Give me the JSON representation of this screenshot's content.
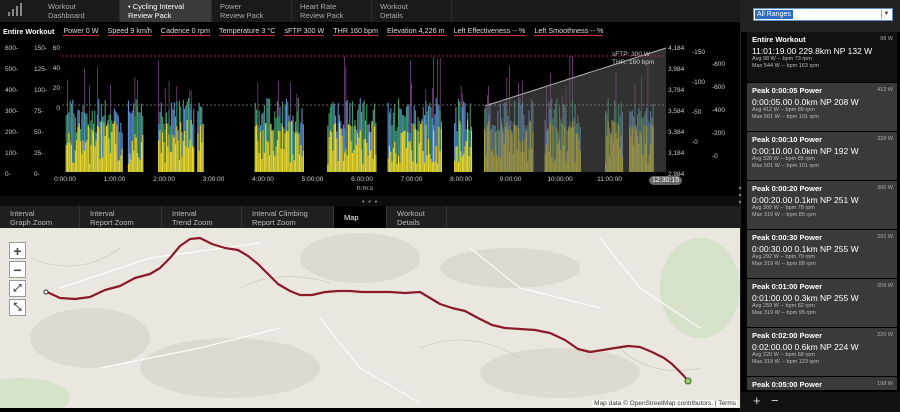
{
  "top_tabs": [
    {
      "label": "Workout\nDashboard"
    },
    {
      "label": "• Cycling Interval\nReview Pack"
    },
    {
      "label": "Power\nReview Pack"
    },
    {
      "label": "Heart Rate\nReview Pack"
    },
    {
      "label": "Workout\nDetails"
    }
  ],
  "stats": {
    "title": "Entire Workout",
    "items": [
      "Power 0 W",
      "Speed 9 km/h",
      "Cadence 0 rpm",
      "Temperature 3 °C",
      "sFTP 300 W",
      "THR 160 bpm",
      "Elevation 4,226 m",
      "Left Effectiveness -- %",
      "Left Smoothness -- %"
    ]
  },
  "graph": {
    "left_axis_1": [
      "600-",
      "500-",
      "400-",
      "300-",
      "200-",
      "100-",
      "0-"
    ],
    "left_axis_2": [
      "150-",
      "125-",
      "100-",
      "75-",
      "50-",
      "25-",
      "0-"
    ],
    "left_axis_3": [
      "60",
      "40",
      "20",
      "0"
    ],
    "right_axis_1": [
      "4,184",
      "3,984",
      "3,784",
      "3,584",
      "3,384",
      "3,184",
      "2,984"
    ],
    "right_axis_2": [
      "-150",
      "-100",
      "-50",
      "-0"
    ],
    "right_axis_3": [
      "-800",
      "-600",
      "-400",
      "-200",
      "-0"
    ],
    "x_ticks": [
      "0:00:00",
      "1:00:00",
      "2:00:00",
      "3:00:00",
      "4:00:00",
      "5:00:00",
      "6:00:00",
      "7:00:00",
      "8:00:00",
      "9:00:00",
      "10:00:00",
      "11:00:00",
      "12:00"
    ],
    "x_label": "h:m:s",
    "legend_sftp": "sFTP: 300 W",
    "legend_thr": "THR: 160 bpm",
    "time_badge": "12:30:15",
    "colors": {
      "power": "#ecd62a",
      "hr": "#5a8fd0",
      "cadence": "#3a9a6a",
      "elevation": "#b5b5b5",
      "speed": "#c86ad0"
    }
  },
  "bottom_tabs": [
    {
      "label": "Interval\nGraph Zoom"
    },
    {
      "label": "Interval\nReport Zoom"
    },
    {
      "label": "Interval\nTrend Zoom"
    },
    {
      "label": "Interval Climbing\nReport Zoom"
    },
    {
      "label": "Map"
    },
    {
      "label": "Workout\nDetails"
    }
  ],
  "map": {
    "attribution": "Map data © OpenStreetMap contributors. | Terms",
    "route_color": "#8b1a2b",
    "zoom_in": "+",
    "zoom_out": "−"
  },
  "sidebar": {
    "range_select": "All Ranges",
    "cards": [
      {
        "title": "Entire Workout",
        "watts": "98 W",
        "main": "11:01:19.00  229.8km  NP 132 W",
        "avg": "Avg  98 W  -- bpm  73 rpm",
        "max": "Max  544 W  -- bpm  163 rpm"
      },
      {
        "title": "Peak 0:00:05 Power",
        "watts": "412 W",
        "main": "0:00:05.00  0.0km  NP 208 W",
        "avg": "Avg  412 W  -- bpm  89 rpm",
        "max": "Max  501 W  -- bpm  101 rpm"
      },
      {
        "title": "Peak 0:00:10 Power",
        "watts": "328 W",
        "main": "0:00:10.00  0.0km  NP 192 W",
        "avg": "Avg  328 W  -- bpm  85 rpm",
        "max": "Max  501 W  -- bpm  101 rpm"
      },
      {
        "title": "Peak 0:00:20 Power",
        "watts": "300 W",
        "main": "0:00:20.00  0.1km  NP 251 W",
        "avg": "Avg  300 W  -- bpm  78 rpm",
        "max": "Max  319 W  -- bpm  85 rpm"
      },
      {
        "title": "Peak 0:00:30 Power",
        "watts": "292 W",
        "main": "0:00:30.00  0.1km  NP 255 W",
        "avg": "Avg  292 W  -- bpm  79 rpm",
        "max": "Max  319 W  -- bpm  88 rpm"
      },
      {
        "title": "Peak 0:01:00 Power",
        "watts": "259 W",
        "main": "0:01:00.00  0.3km  NP 255 W",
        "avg": "Avg  259 W  -- bpm  82 rpm",
        "max": "Max  319 W  -- bpm  95 rpm"
      },
      {
        "title": "Peak 0:02:00 Power",
        "watts": "220 W",
        "main": "0:02:00.00  0.6km  NP 224 W",
        "avg": "Avg  220 W  -- bpm  68 rpm",
        "max": "Max  319 W  -- bpm  123 rpm"
      },
      {
        "title": "Peak 0:05:00 Power",
        "watts": "198 W",
        "main": "",
        "avg": "",
        "max": ""
      }
    ],
    "add_label": "+",
    "remove_label": "−"
  }
}
